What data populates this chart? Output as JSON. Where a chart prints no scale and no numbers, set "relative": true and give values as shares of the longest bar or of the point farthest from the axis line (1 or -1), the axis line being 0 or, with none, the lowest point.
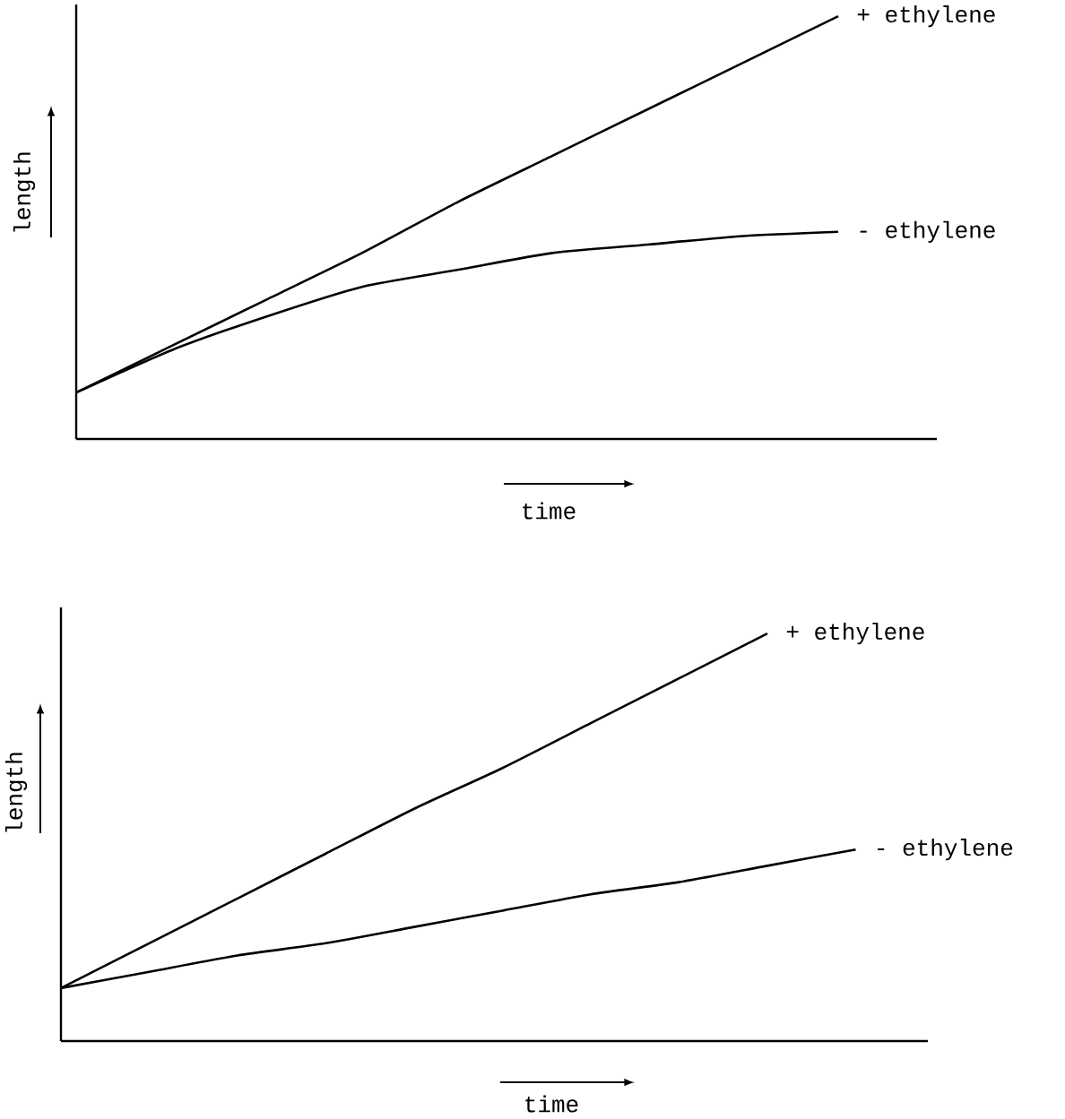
{
  "chart_data": [
    {
      "type": "line",
      "relative": true,
      "xlabel": "time",
      "ylabel": "length",
      "categories": [
        null,
        null,
        null,
        null,
        null,
        null,
        null,
        null,
        null
      ],
      "legend": false,
      "marker": "none",
      "line_style": "solid",
      "series": [
        {
          "name": "+ ethylene",
          "color": "#000000",
          "values": [
            0.11,
            0.22,
            0.33,
            0.44,
            0.56,
            0.67,
            0.78,
            0.89,
            1.0
          ]
        },
        {
          "name": "- ethylene",
          "color": "#000000",
          "values": [
            0.11,
            0.21,
            0.29,
            0.36,
            0.4,
            0.44,
            0.46,
            0.48,
            0.49
          ]
        }
      ]
    },
    {
      "type": "line",
      "relative": true,
      "xlabel": "time",
      "ylabel": "length",
      "categories": [
        null,
        null,
        null,
        null,
        null,
        null,
        null,
        null,
        null,
        null
      ],
      "legend": false,
      "marker": "none",
      "line_style": "solid",
      "series": [
        {
          "name": "+ ethylene",
          "color": "#000000",
          "values": [
            0.13,
            0.24,
            0.35,
            0.46,
            0.57,
            0.67,
            0.78,
            0.89,
            1.0,
            null
          ]
        },
        {
          "name": "- ethylene",
          "color": "#000000",
          "values": [
            0.13,
            0.17,
            0.21,
            0.24,
            0.28,
            0.32,
            0.36,
            0.39,
            0.43,
            0.47
          ]
        }
      ]
    }
  ]
}
